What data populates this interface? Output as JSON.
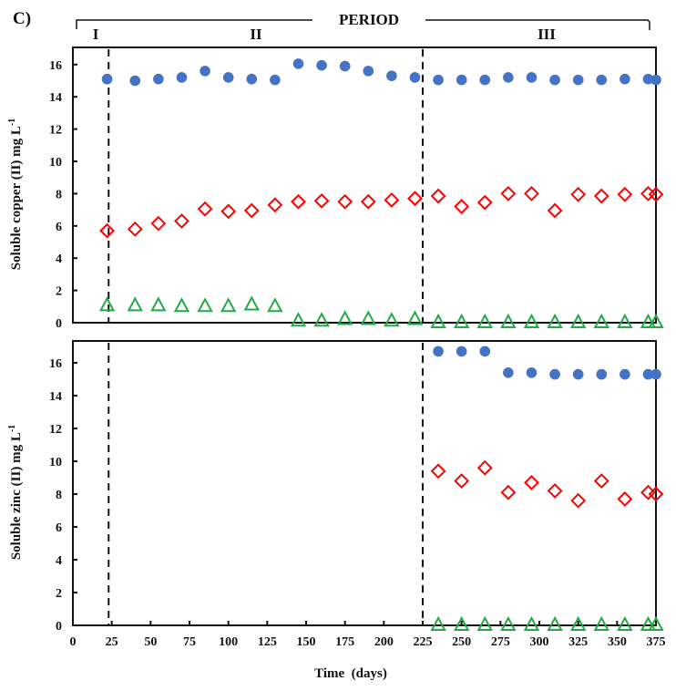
{
  "chart_data": {
    "type": "scatter",
    "panel_label": "C)",
    "period": {
      "title": "PERIOD",
      "phases": [
        "I",
        "II",
        "III"
      ],
      "boundaries_days": [
        23,
        225
      ]
    },
    "xlabel": "Time  (days)",
    "xlim": [
      0,
      375
    ],
    "xticks": [
      0,
      25,
      50,
      75,
      100,
      125,
      150,
      175,
      200,
      225,
      250,
      275,
      300,
      325,
      350,
      375
    ],
    "yticks": [
      0,
      2,
      4,
      6,
      8,
      10,
      12,
      14,
      16
    ],
    "panels": [
      {
        "ylabel": "Soluble copper (II) mg L",
        "ylabel_sup": "-1",
        "ylim": [
          0,
          17
        ],
        "x": [
          22,
          40,
          55,
          70,
          85,
          100,
          115,
          130,
          145,
          160,
          175,
          190,
          205,
          220,
          235,
          250,
          265,
          280,
          295,
          310,
          325,
          340,
          355,
          370,
          375
        ],
        "series": [
          {
            "marker": "circle",
            "color": "#4472C4",
            "values": [
              15.1,
              15.0,
              15.1,
              15.2,
              15.6,
              15.2,
              15.1,
              15.05,
              16.05,
              15.95,
              15.9,
              15.6,
              15.3,
              15.2,
              15.05,
              15.05,
              15.05,
              15.2,
              15.2,
              15.05,
              15.05,
              15.05,
              15.1,
              15.1,
              15.05
            ]
          },
          {
            "marker": "diamond",
            "color": "#FF0000",
            "values": [
              5.7,
              5.8,
              6.15,
              6.3,
              7.05,
              6.9,
              6.95,
              7.3,
              7.5,
              7.55,
              7.5,
              7.5,
              7.6,
              7.7,
              7.85,
              7.2,
              7.45,
              8.0,
              8.0,
              6.95,
              7.95,
              7.85,
              7.95,
              8.0,
              7.95
            ]
          },
          {
            "marker": "triangle",
            "color": "#22AA44",
            "values": [
              1.05,
              1.05,
              1.05,
              1.0,
              1.0,
              1.0,
              1.1,
              1.0,
              0.1,
              0.1,
              0.2,
              0.2,
              0.1,
              0.2,
              0,
              0,
              0,
              0,
              0,
              0,
              0,
              0,
              0,
              0,
              0
            ]
          }
        ]
      },
      {
        "ylabel": "Soluble zinc (II) mg L",
        "ylabel_sup": "-1",
        "ylim": [
          0,
          17
        ],
        "x": [
          235,
          250,
          265,
          280,
          295,
          310,
          325,
          340,
          355,
          370,
          375
        ],
        "series": [
          {
            "marker": "circle",
            "color": "#4472C4",
            "values": [
              16.7,
              16.7,
              16.7,
              15.4,
              15.4,
              15.3,
              15.3,
              15.3,
              15.3,
              15.3,
              15.3
            ]
          },
          {
            "marker": "diamond",
            "color": "#FF0000",
            "values": [
              9.4,
              8.8,
              9.6,
              8.1,
              8.7,
              8.2,
              7.6,
              8.8,
              7.7,
              8.1,
              8.0
            ]
          },
          {
            "marker": "triangle",
            "color": "#22AA44",
            "values": [
              0,
              0,
              0,
              0,
              0,
              0,
              0,
              0,
              0,
              0,
              0
            ]
          }
        ]
      }
    ]
  }
}
